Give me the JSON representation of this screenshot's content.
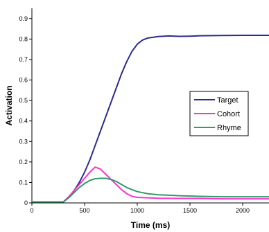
{
  "chart_data": {
    "type": "line",
    "xlabel": "Time (ms)",
    "ylabel": "Activation",
    "xlim": [
      0,
      2250
    ],
    "ylim": [
      0,
      0.95
    ],
    "xticks": [
      0,
      500,
      1000,
      1500,
      2000
    ],
    "yticks": [
      0,
      0.1,
      0.2,
      0.3,
      0.4,
      0.5,
      0.6,
      0.7,
      0.8,
      0.9
    ],
    "xtick_labels": [
      "0",
      "500",
      "1000",
      "1500",
      "2000"
    ],
    "ytick_labels": [
      "0",
      "0.1",
      "0.2",
      "0.3",
      "0.4",
      "0.5",
      "0.6",
      "0.7",
      "0.8",
      "0.9"
    ],
    "grid": false,
    "legend_position": "right",
    "series": [
      {
        "name": "Target",
        "color": "#2b2b8f",
        "x": [
          0,
          300,
          350,
          400,
          450,
          500,
          550,
          600,
          650,
          700,
          750,
          800,
          850,
          900,
          950,
          1000,
          1050,
          1100,
          1200,
          1300,
          1400,
          1500,
          1600,
          1800,
          2000,
          2250
        ],
        "y": [
          0.005,
          0.005,
          0.03,
          0.06,
          0.1,
          0.15,
          0.21,
          0.28,
          0.35,
          0.42,
          0.49,
          0.56,
          0.63,
          0.69,
          0.74,
          0.775,
          0.795,
          0.805,
          0.812,
          0.815,
          0.813,
          0.814,
          0.816,
          0.817,
          0.818,
          0.818
        ]
      },
      {
        "name": "Cohort",
        "color": "#ff33cc",
        "x": [
          0,
          300,
          350,
          400,
          450,
          500,
          550,
          600,
          650,
          700,
          750,
          800,
          850,
          900,
          950,
          1000,
          1100,
          1200,
          1400,
          1600,
          1800,
          2000,
          2250
        ],
        "y": [
          0.005,
          0.005,
          0.03,
          0.06,
          0.09,
          0.12,
          0.15,
          0.175,
          0.165,
          0.14,
          0.115,
          0.09,
          0.065,
          0.045,
          0.032,
          0.027,
          0.025,
          0.023,
          0.022,
          0.022,
          0.02,
          0.02,
          0.02
        ]
      },
      {
        "name": "Rhyme",
        "color": "#2f9a6a",
        "x": [
          0,
          300,
          350,
          400,
          450,
          500,
          550,
          600,
          650,
          700,
          750,
          800,
          850,
          900,
          1000,
          1100,
          1200,
          1400,
          1600,
          1800,
          2000,
          2250
        ],
        "y": [
          0.005,
          0.005,
          0.025,
          0.05,
          0.075,
          0.095,
          0.11,
          0.118,
          0.12,
          0.12,
          0.115,
          0.105,
          0.09,
          0.075,
          0.055,
          0.045,
          0.04,
          0.035,
          0.032,
          0.03,
          0.03,
          0.03
        ]
      }
    ]
  }
}
